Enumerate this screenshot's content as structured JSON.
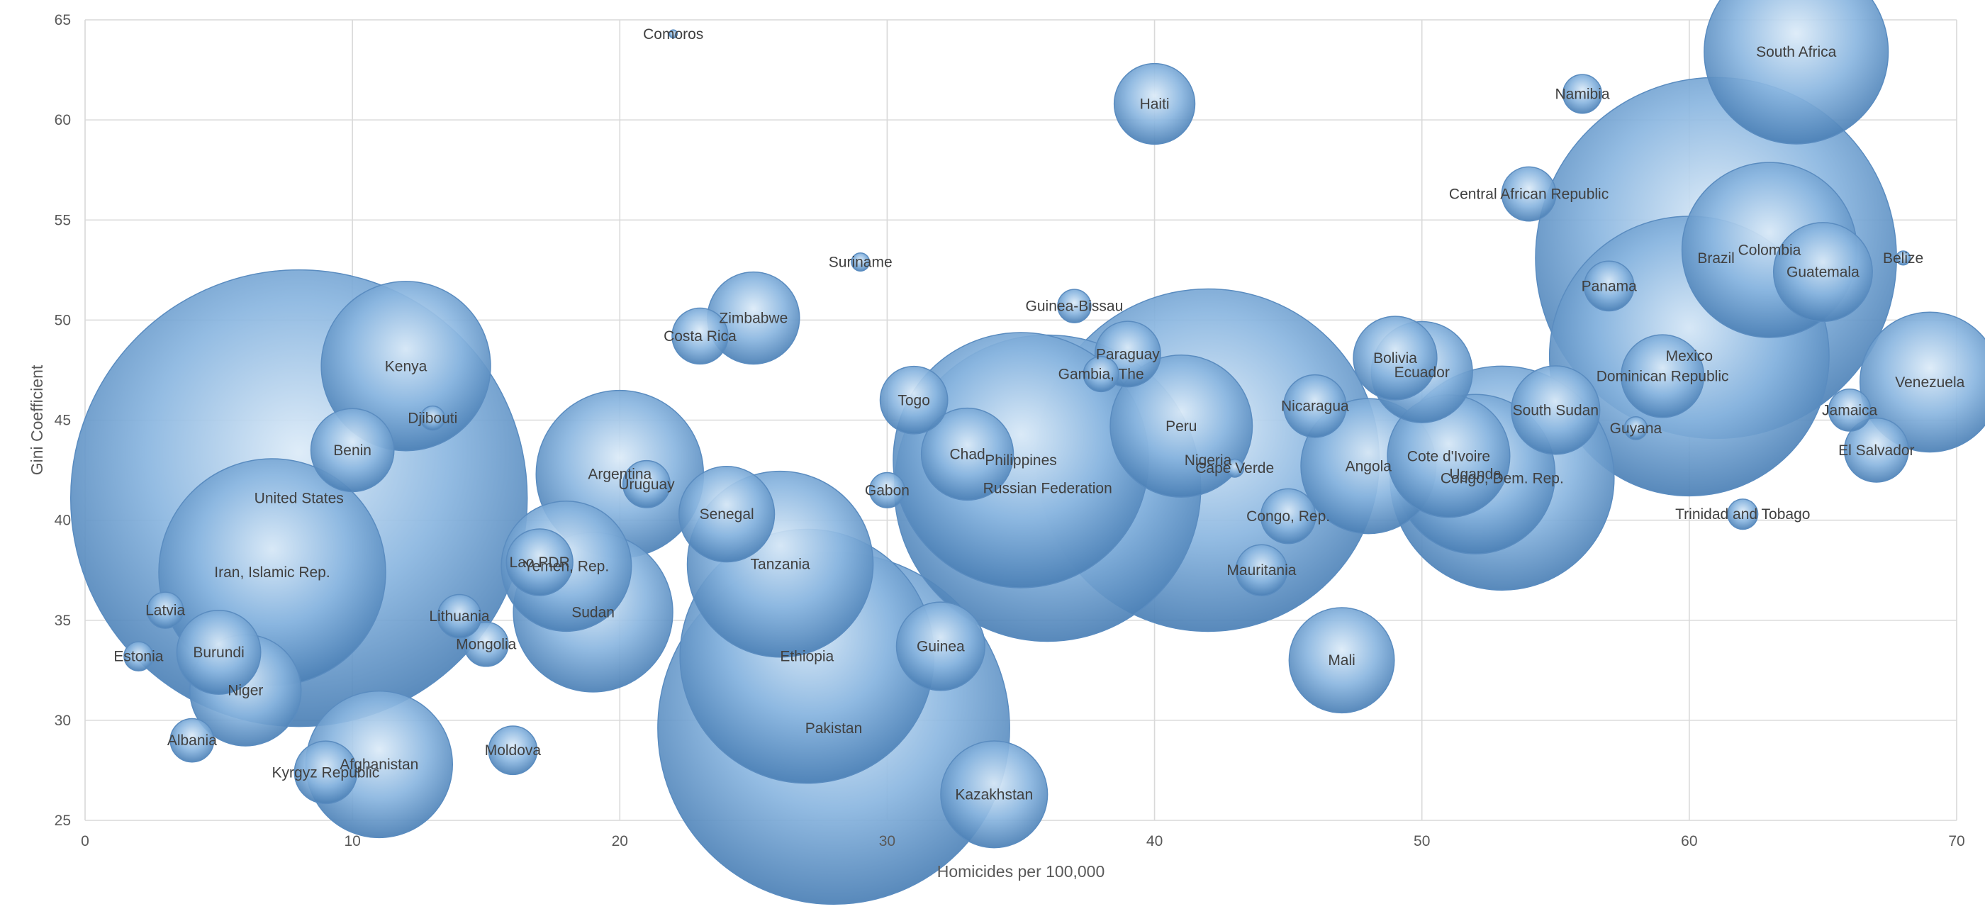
{
  "chart_data": {
    "type": "scatter",
    "variant": "bubble",
    "title": "",
    "xlabel": "Homicides per 100,000",
    "ylabel": "Gini Coefficient",
    "xlim": [
      0,
      70
    ],
    "ylim": [
      25,
      65
    ],
    "xticks": [
      0,
      10,
      20,
      30,
      40,
      50,
      60,
      70
    ],
    "yticks": [
      25,
      30,
      35,
      40,
      45,
      50,
      55,
      60,
      65
    ],
    "grid": true,
    "legend": "none",
    "bubble_size_note": "relative population (bubble size)",
    "bubble_color": "#5b9bd5",
    "points": [
      {
        "label": "Comoros",
        "x": 22,
        "y": 64.3,
        "size": 0.1
      },
      {
        "label": "Haiti",
        "x": 40,
        "y": 60.8,
        "size": 10
      },
      {
        "label": "South Africa",
        "x": 64,
        "y": 63.4,
        "size": 52
      },
      {
        "label": "Namibia",
        "x": 56,
        "y": 61.3,
        "size": 2.3
      },
      {
        "label": "Central African Republic",
        "x": 54,
        "y": 56.3,
        "size": 4.5
      },
      {
        "label": "Suriname",
        "x": 29,
        "y": 52.9,
        "size": 0.5
      },
      {
        "label": "Brazil",
        "x": 61,
        "y": 53.1,
        "size": 200
      },
      {
        "label": "Colombia",
        "x": 63,
        "y": 53.5,
        "size": 47
      },
      {
        "label": "Guatemala",
        "x": 65,
        "y": 52.4,
        "size": 15
      },
      {
        "label": "Belize",
        "x": 68,
        "y": 53.1,
        "size": 0.3
      },
      {
        "label": "Panama",
        "x": 57,
        "y": 51.7,
        "size": 3.8
      },
      {
        "label": "Zimbabwe",
        "x": 25,
        "y": 50.1,
        "size": 13
      },
      {
        "label": "Costa Rica",
        "x": 23,
        "y": 49.2,
        "size": 4.8
      },
      {
        "label": "Guinea-Bissau",
        "x": 37,
        "y": 50.7,
        "size": 1.7
      },
      {
        "label": "Paraguay",
        "x": 39,
        "y": 48.3,
        "size": 6.6
      },
      {
        "label": "Gambia, The",
        "x": 38,
        "y": 47.3,
        "size": 1.9
      },
      {
        "label": "Bolivia",
        "x": 49,
        "y": 48.1,
        "size": 10.7
      },
      {
        "label": "Ecuador",
        "x": 50,
        "y": 47.4,
        "size": 15.7
      },
      {
        "label": "Mexico",
        "x": 60,
        "y": 48.2,
        "size": 120
      },
      {
        "label": "Dominican Republic",
        "x": 59,
        "y": 47.2,
        "size": 10.5
      },
      {
        "label": "Venezuela",
        "x": 69,
        "y": 46.9,
        "size": 30
      },
      {
        "label": "Kenya",
        "x": 12,
        "y": 47.7,
        "size": 44
      },
      {
        "label": "Djibouti",
        "x": 13,
        "y": 45.1,
        "size": 0.9
      },
      {
        "label": "Togo",
        "x": 31,
        "y": 46,
        "size": 7
      },
      {
        "label": "Nicaragua",
        "x": 46,
        "y": 45.7,
        "size": 6
      },
      {
        "label": "South Sudan",
        "x": 55,
        "y": 45.5,
        "size": 12
      },
      {
        "label": "Jamaica",
        "x": 66,
        "y": 45.5,
        "size": 2.7
      },
      {
        "label": "Guyana",
        "x": 58,
        "y": 44.6,
        "size": 0.8
      },
      {
        "label": "Peru",
        "x": 41,
        "y": 44.7,
        "size": 31
      },
      {
        "label": "Benin",
        "x": 10,
        "y": 43.5,
        "size": 10.6
      },
      {
        "label": "Chad",
        "x": 33,
        "y": 43.3,
        "size": 13
      },
      {
        "label": "Philippines",
        "x": 35,
        "y": 43.0,
        "size": 100
      },
      {
        "label": "Nigeria",
        "x": 42,
        "y": 43.0,
        "size": 180
      },
      {
        "label": "Cape Verde",
        "x": 43,
        "y": 42.6,
        "size": 0.5
      },
      {
        "label": "Cote d'Ivoire",
        "x": 51,
        "y": 43.2,
        "size": 23
      },
      {
        "label": "Uganda",
        "x": 52,
        "y": 42.3,
        "size": 39
      },
      {
        "label": "Congo, Dem. Rep.",
        "x": 53,
        "y": 42.1,
        "size": 77
      },
      {
        "label": "Angola",
        "x": 48,
        "y": 42.7,
        "size": 28
      },
      {
        "label": "El Salvador",
        "x": 67,
        "y": 43.5,
        "size": 6.3
      },
      {
        "label": "United States",
        "x": 8,
        "y": 41.1,
        "size": 320
      },
      {
        "label": "Argentina",
        "x": 20,
        "y": 42.3,
        "size": 43
      },
      {
        "label": "Uruguay",
        "x": 21,
        "y": 41.8,
        "size": 3.4
      },
      {
        "label": "Russian Federation",
        "x": 36,
        "y": 41.6,
        "size": 144
      },
      {
        "label": "Gabon",
        "x": 30,
        "y": 41.5,
        "size": 1.9
      },
      {
        "label": "Senegal",
        "x": 24,
        "y": 40.3,
        "size": 14
      },
      {
        "label": "Congo, Rep.",
        "x": 45,
        "y": 40.2,
        "size": 4.6
      },
      {
        "label": "Trinidad and Tobago",
        "x": 62,
        "y": 40.3,
        "size": 1.4
      },
      {
        "label": "Lao PDR",
        "x": 17,
        "y": 37.9,
        "size": 6.8
      },
      {
        "label": "Yemen, Rep.",
        "x": 18,
        "y": 37.7,
        "size": 26
      },
      {
        "label": "Tanzania",
        "x": 26,
        "y": 37.8,
        "size": 53
      },
      {
        "label": "Iran, Islamic Rep.",
        "x": 7,
        "y": 37.4,
        "size": 79
      },
      {
        "label": "Mauritania",
        "x": 44,
        "y": 37.5,
        "size": 4
      },
      {
        "label": "Latvia",
        "x": 3,
        "y": 35.5,
        "size": 2
      },
      {
        "label": "Lithuania",
        "x": 14,
        "y": 35.2,
        "size": 2.9
      },
      {
        "label": "Sudan",
        "x": 19,
        "y": 35.4,
        "size": 39
      },
      {
        "label": "Burundi",
        "x": 5,
        "y": 33.4,
        "size": 10.8
      },
      {
        "label": "Estonia",
        "x": 2,
        "y": 33.2,
        "size": 1.3
      },
      {
        "label": "Mongolia",
        "x": 15,
        "y": 33.8,
        "size": 3
      },
      {
        "label": "Guinea",
        "x": 32,
        "y": 33.7,
        "size": 12
      },
      {
        "label": "Ethiopia",
        "x": 27,
        "y": 33.2,
        "size": 99
      },
      {
        "label": "Mali",
        "x": 47,
        "y": 33.0,
        "size": 17
      },
      {
        "label": "Niger",
        "x": 6,
        "y": 31.5,
        "size": 19
      },
      {
        "label": "Pakistan",
        "x": 28,
        "y": 29.6,
        "size": 190
      },
      {
        "label": "Albania",
        "x": 4,
        "y": 29.0,
        "size": 2.9
      },
      {
        "label": "Moldova",
        "x": 16,
        "y": 28.5,
        "size": 3.6
      },
      {
        "label": "Afghanistan",
        "x": 11,
        "y": 27.8,
        "size": 33
      },
      {
        "label": "Kyrgyz Republic",
        "x": 9,
        "y": 27.4,
        "size": 6
      },
      {
        "label": "Kazakhstan",
        "x": 34,
        "y": 26.3,
        "size": 17.5
      }
    ]
  }
}
